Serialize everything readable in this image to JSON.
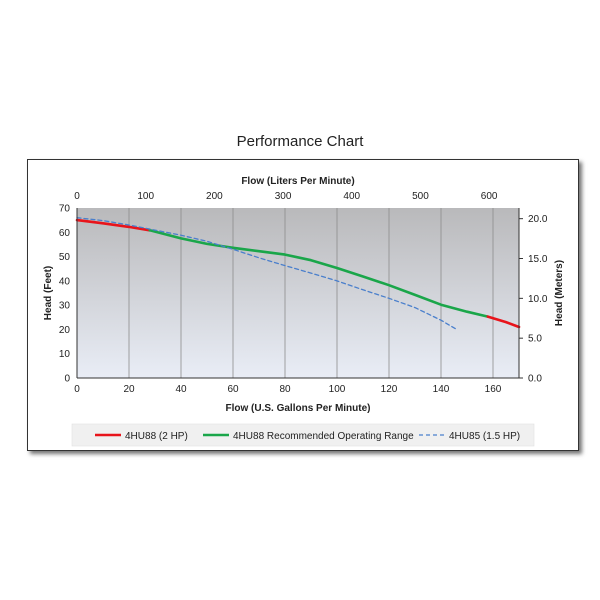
{
  "chart_data": {
    "type": "line",
    "title": "Performance Chart",
    "xlabel": "Flow (U.S. Gallons Per Minute)",
    "x2label": "Flow (Liters Per Minute)",
    "ylabel": "Head (Feet)",
    "y2label": "Head (Meters)",
    "xlim": [
      0,
      170
    ],
    "ylim": [
      0,
      70
    ],
    "x2lim": [
      0,
      643.5
    ],
    "y2lim": [
      0,
      21.34
    ],
    "x_ticks": [
      0,
      20,
      40,
      60,
      80,
      100,
      120,
      140,
      160
    ],
    "y_ticks": [
      0,
      10,
      20,
      30,
      40,
      50,
      60,
      70
    ],
    "x2_ticks": [
      0,
      100,
      200,
      300,
      400,
      500,
      600
    ],
    "y2_ticks": [
      "0.0",
      "5.0",
      "10.0",
      "15.0",
      "20.0"
    ],
    "y2_tick_values": [
      0,
      5,
      10,
      15,
      20
    ],
    "grid": "vertical",
    "legend_position": "bottom",
    "series": [
      {
        "name": "4HU88 (2 HP)",
        "color": "#e8141b",
        "style": "solid",
        "x": [
          0,
          10,
          20,
          28
        ],
        "y": [
          65,
          63.7,
          62.2,
          60.8
        ]
      },
      {
        "name": "4HU88 Recommended Operating Range",
        "color": "#1aa64a",
        "style": "solid",
        "x": [
          28,
          40,
          50,
          60,
          70,
          80,
          90,
          100,
          110,
          120,
          130,
          140,
          150,
          158
        ],
        "y": [
          60.8,
          57.5,
          55.2,
          53.6,
          52.2,
          50.8,
          48.5,
          45.3,
          41.8,
          38.2,
          34.2,
          30.2,
          27.3,
          25.3
        ]
      },
      {
        "name": "4HU88 (2 HP)",
        "color": "#e8141b",
        "style": "solid",
        "legend": false,
        "x": [
          158,
          165,
          170
        ],
        "y": [
          25.3,
          23,
          21
        ]
      },
      {
        "name": "4HU85 (1.5 HP)",
        "color": "#4a7fcc",
        "style": "dashed",
        "x": [
          0,
          10,
          20,
          30,
          40,
          50,
          60,
          70,
          80,
          90,
          100,
          110,
          120,
          130,
          140,
          146
        ],
        "y": [
          66,
          64.8,
          63,
          60.9,
          58.8,
          56.3,
          53,
          49.5,
          46.3,
          43.2,
          40,
          36.3,
          32.8,
          29,
          23.8,
          20
        ]
      }
    ]
  }
}
